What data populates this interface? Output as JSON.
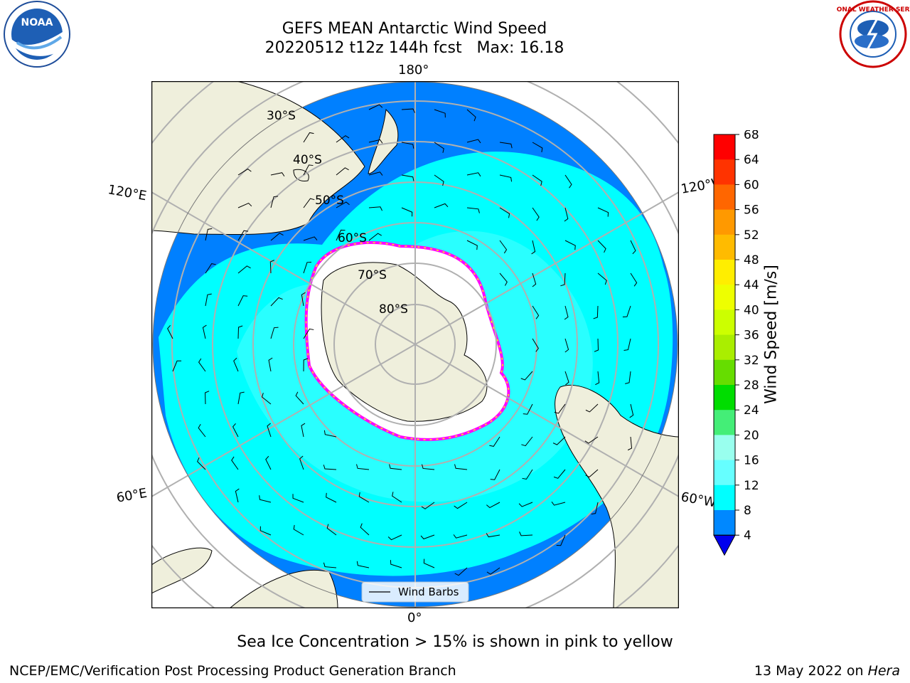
{
  "title": {
    "line1": "GEFS MEAN Antarctic Wind Speed",
    "line2": "20220512 t12z 144h fcst   Max: 16.18"
  },
  "logos": {
    "noara": "NOAA",
    "nws": "NATIONAL WEATHER SERVICE"
  },
  "map": {
    "longitude_labels": [
      "180°",
      "120°E",
      "120°W",
      "60°E",
      "60°W",
      "0°"
    ],
    "latitude_labels": [
      "30°S",
      "40°S",
      "50°S",
      "60°S",
      "70°S",
      "80°S"
    ],
    "legend": "Wind Barbs",
    "ocean_color": "#00ffff",
    "calm_color": "#0080ff",
    "land_color": "#efefdc",
    "ice_color": "#ffffff",
    "ice_edge_colors": [
      "#ff00ff",
      "#ffff00"
    ]
  },
  "colorbar": {
    "label": "Wind Speed [m/s]",
    "ticks": [
      "68",
      "64",
      "60",
      "56",
      "52",
      "48",
      "44",
      "40",
      "36",
      "32",
      "28",
      "24",
      "20",
      "16",
      "12",
      "8",
      "4"
    ],
    "colors": [
      "#ff0000",
      "#ff3300",
      "#ff6600",
      "#ff9900",
      "#ffbb00",
      "#ffee00",
      "#eeff00",
      "#ccff00",
      "#aaee00",
      "#66dd00",
      "#00dd00",
      "#44ee77",
      "#99ffee",
      "#66ffff",
      "#00ffff",
      "#0088ff",
      "#0000ee"
    ]
  },
  "caption": "Sea Ice Concentration > 15% is shown in pink to yellow",
  "footer": {
    "left": "NCEP/EMC/Verification Post Processing Product Generation Branch",
    "date": "13 May 2022 on",
    "machine": "Hera"
  }
}
